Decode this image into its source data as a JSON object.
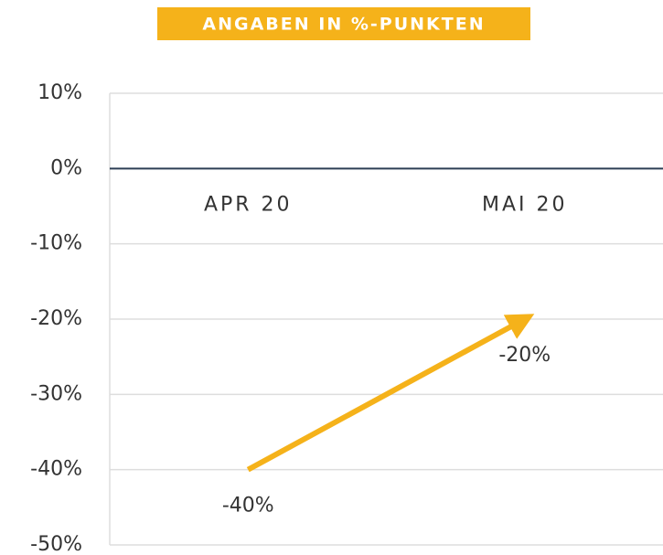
{
  "chart_data": {
    "type": "line",
    "title": "ANGABEN IN %-PUNKTEN",
    "categories": [
      "APR 20",
      "MAI 20"
    ],
    "values": [
      -40,
      -20
    ],
    "value_labels": [
      "-40%",
      "-20%"
    ],
    "color": "#f5b21a",
    "ylim": [
      -50,
      10
    ],
    "yticks": [
      {
        "value": 10,
        "label": "10%"
      },
      {
        "value": 0,
        "label": "0%"
      },
      {
        "value": -10,
        "label": "-10%"
      },
      {
        "value": -20,
        "label": "-20%"
      },
      {
        "value": -30,
        "label": "-30%"
      },
      {
        "value": -40,
        "label": "-40%"
      },
      {
        "value": -50,
        "label": "-50%"
      }
    ],
    "grid": true
  }
}
